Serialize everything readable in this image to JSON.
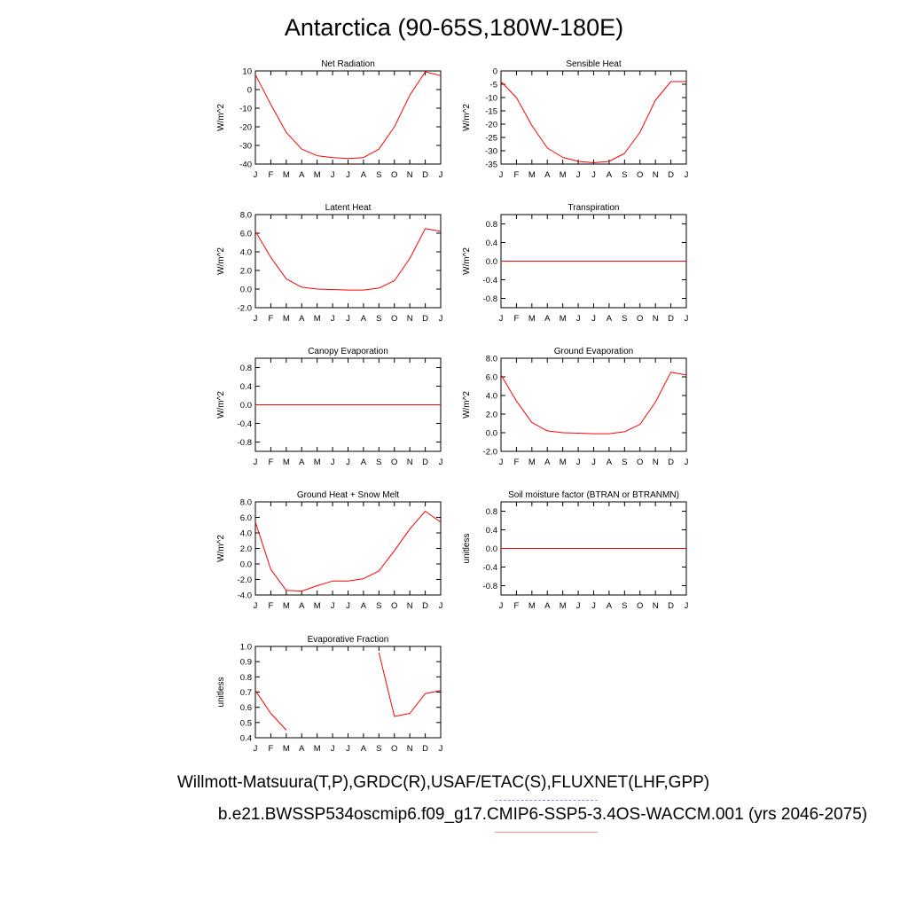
{
  "title": "Antarctica (90-65S,180W-180E)",
  "footer": {
    "observations": "Willmott-Matsuura(T,P),GRDC(R),USAF/ETAC(S),FLUXNET(LHF,GPP)",
    "model": "b.e21.BWSSP534oscmip6.f09_g17.CMIP6-SSP5-3.4OS-WACCM.001 (yrs 2046-2075)"
  },
  "colors": {
    "model_line": "#ff0000",
    "obs_legend": "#8888ee",
    "model_legend": "#ff8888"
  },
  "chart_data": [
    {
      "type": "line",
      "title": "Net Radiation",
      "ylabel": "W/m^2",
      "categories": [
        "J",
        "F",
        "M",
        "A",
        "M",
        "J",
        "J",
        "A",
        "S",
        "O",
        "N",
        "D",
        "J"
      ],
      "ylim": [
        -40,
        10
      ],
      "yticks": [
        10,
        0,
        -10,
        -20,
        -30,
        -40
      ],
      "ytick_labels": [
        "10",
        "0",
        "-10",
        "-20",
        "-30",
        "-40"
      ],
      "values": [
        8,
        -8,
        -23,
        -32,
        -35.5,
        -36.5,
        -37,
        -36.5,
        -32,
        -20,
        -3,
        9.5,
        7.5
      ]
    },
    {
      "type": "line",
      "title": "Sensible Heat",
      "ylabel": "W/m^2",
      "categories": [
        "J",
        "F",
        "M",
        "A",
        "M",
        "J",
        "J",
        "A",
        "S",
        "O",
        "N",
        "D",
        "J"
      ],
      "ylim": [
        -35,
        0
      ],
      "yticks": [
        0,
        -5,
        -10,
        -15,
        -20,
        -25,
        -30,
        -35
      ],
      "ytick_labels": [
        "0",
        "-5",
        "-10",
        "-15",
        "-20",
        "-25",
        "-30",
        "-35"
      ],
      "values": [
        -4,
        -10,
        -20.5,
        -29,
        -32.5,
        -34,
        -34.5,
        -34,
        -31,
        -23,
        -11,
        -4,
        -4
      ]
    },
    {
      "type": "line",
      "title": "Latent Heat",
      "ylabel": "W/m^2",
      "categories": [
        "J",
        "F",
        "M",
        "A",
        "M",
        "J",
        "J",
        "A",
        "S",
        "O",
        "N",
        "D",
        "J"
      ],
      "ylim": [
        -2,
        8
      ],
      "yticks": [
        8,
        6,
        4,
        2,
        0,
        -2
      ],
      "ytick_labels": [
        "8.0",
        "6.0",
        "4.0",
        "2.0",
        "0.0",
        "-2.0"
      ],
      "values": [
        6.2,
        3.4,
        1.1,
        0.2,
        0.0,
        -0.05,
        -0.1,
        -0.1,
        0.1,
        0.9,
        3.3,
        6.5,
        6.2
      ]
    },
    {
      "type": "line",
      "title": "Transpiration",
      "ylabel": "W/m^2",
      "categories": [
        "J",
        "F",
        "M",
        "A",
        "M",
        "J",
        "J",
        "A",
        "S",
        "O",
        "N",
        "D",
        "J"
      ],
      "ylim": [
        -1,
        1
      ],
      "yticks": [
        0.8,
        0.4,
        0,
        -0.4,
        -0.8
      ],
      "ytick_labels": [
        "0.8",
        "0.4",
        "0.0",
        "-0.4",
        "-0.8"
      ],
      "values": [
        0,
        0,
        0,
        0,
        0,
        0,
        0,
        0,
        0,
        0,
        0,
        0,
        0
      ]
    },
    {
      "type": "line",
      "title": "Canopy Evaporation",
      "ylabel": "W/m^2",
      "categories": [
        "J",
        "F",
        "M",
        "A",
        "M",
        "J",
        "J",
        "A",
        "S",
        "O",
        "N",
        "D",
        "J"
      ],
      "ylim": [
        -1,
        1
      ],
      "yticks": [
        0.8,
        0.4,
        0,
        -0.4,
        -0.8
      ],
      "ytick_labels": [
        "0.8",
        "0.4",
        "0.0",
        "-0.4",
        "-0.8"
      ],
      "values": [
        0,
        0,
        0,
        0,
        0,
        0,
        0,
        0,
        0,
        0,
        0,
        0,
        0
      ]
    },
    {
      "type": "line",
      "title": "Ground Evaporation",
      "ylabel": "W/m^2",
      "categories": [
        "J",
        "F",
        "M",
        "A",
        "M",
        "J",
        "J",
        "A",
        "S",
        "O",
        "N",
        "D",
        "J"
      ],
      "ylim": [
        -2,
        8
      ],
      "yticks": [
        8,
        6,
        4,
        2,
        0,
        -2
      ],
      "ytick_labels": [
        "8.0",
        "6.0",
        "4.0",
        "2.0",
        "0.0",
        "-2.0"
      ],
      "values": [
        6.2,
        3.4,
        1.1,
        0.2,
        0.0,
        -0.05,
        -0.1,
        -0.1,
        0.1,
        0.9,
        3.3,
        6.5,
        6.2
      ]
    },
    {
      "type": "line",
      "title": "Ground Heat + Snow Melt",
      "ylabel": "W/m^2",
      "categories": [
        "J",
        "F",
        "M",
        "A",
        "M",
        "J",
        "J",
        "A",
        "S",
        "O",
        "N",
        "D",
        "J"
      ],
      "ylim": [
        -4,
        8
      ],
      "yticks": [
        8,
        6,
        4,
        2,
        0,
        -2,
        -4
      ],
      "ytick_labels": [
        "8.0",
        "6.0",
        "4.0",
        "2.0",
        "0.0",
        "-2.0",
        "-4.0"
      ],
      "values": [
        5.4,
        -0.7,
        -3.4,
        -3.5,
        -2.8,
        -2.2,
        -2.2,
        -1.9,
        -0.9,
        1.7,
        4.5,
        6.8,
        5.4
      ]
    },
    {
      "type": "line",
      "title": "Soil moisture factor (BTRAN or BTRANMN)",
      "ylabel": "unitless",
      "categories": [
        "J",
        "F",
        "M",
        "A",
        "M",
        "J",
        "J",
        "A",
        "S",
        "O",
        "N",
        "D",
        "J"
      ],
      "ylim": [
        -1,
        1
      ],
      "yticks": [
        0.8,
        0.4,
        0,
        -0.4,
        -0.8
      ],
      "ytick_labels": [
        "0.8",
        "0.4",
        "0.0",
        "-0.4",
        "-0.8"
      ],
      "values": [
        0,
        0,
        0,
        0,
        0,
        0,
        0,
        0,
        0,
        0,
        0,
        0,
        0
      ]
    },
    {
      "type": "line",
      "title": "Evaporative Fraction",
      "ylabel": "unitless",
      "categories": [
        "J",
        "F",
        "M",
        "A",
        "M",
        "J",
        "J",
        "A",
        "S",
        "O",
        "N",
        "D",
        "J"
      ],
      "ylim": [
        0.4,
        1.0
      ],
      "yticks": [
        1.0,
        0.9,
        0.8,
        0.7,
        0.6,
        0.5,
        0.4
      ],
      "ytick_labels": [
        "1.0",
        "0.9",
        "0.8",
        "0.7",
        "0.6",
        "0.5",
        "0.4"
      ],
      "values": [
        0.71,
        0.56,
        0.45,
        null,
        null,
        null,
        null,
        null,
        0.96,
        0.54,
        0.56,
        0.69,
        0.71
      ]
    }
  ]
}
